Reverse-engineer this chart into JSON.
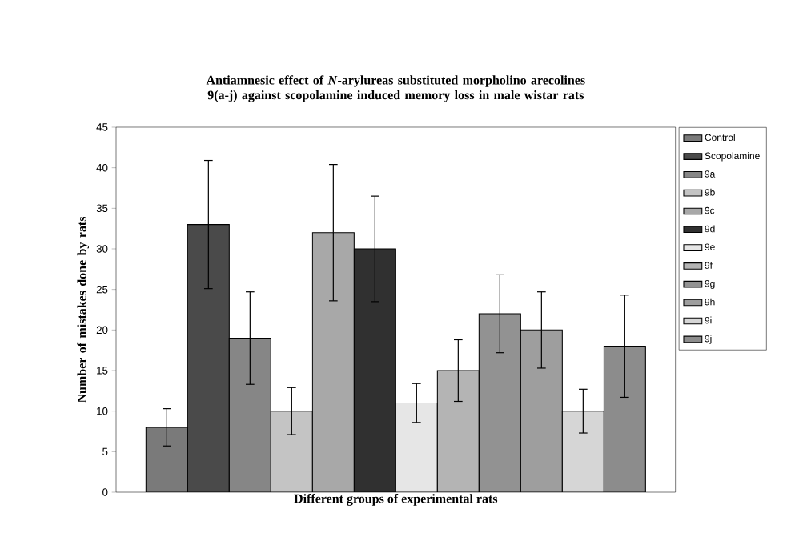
{
  "chart_data": {
    "type": "bar",
    "title": "Antiamnesic effect of *N*-arylureas substituted morpholino arecolines 9(a-j) against scopolamine induced memory loss in male wistar rats",
    "xlabel": "Different groups of experimental rats",
    "ylabel": "Number of mistakes done by rats",
    "categories": [
      null
    ],
    "series": [
      {
        "name": "Control",
        "color": "#7a7a7a",
        "values": [
          8
        ],
        "errors": [
          2.3
        ]
      },
      {
        "name": "Scopolamine",
        "color": "#4a4a4a",
        "values": [
          33
        ],
        "errors": [
          7.9
        ]
      },
      {
        "name": "9a",
        "color": "#868686",
        "values": [
          19
        ],
        "errors": [
          5.7
        ]
      },
      {
        "name": "9b",
        "color": "#c4c4c4",
        "values": [
          10
        ],
        "errors": [
          2.9
        ]
      },
      {
        "name": "9c",
        "color": "#a8a8a8",
        "values": [
          32
        ],
        "errors": [
          8.4
        ]
      },
      {
        "name": "9d",
        "color": "#303030",
        "values": [
          30
        ],
        "errors": [
          6.5
        ]
      },
      {
        "name": "9e",
        "color": "#e6e6e6",
        "values": [
          11
        ],
        "errors": [
          2.4
        ]
      },
      {
        "name": "9f",
        "color": "#b4b4b4",
        "values": [
          15
        ],
        "errors": [
          3.8
        ]
      },
      {
        "name": "9g",
        "color": "#929292",
        "values": [
          22
        ],
        "errors": [
          4.8
        ]
      },
      {
        "name": "9h",
        "color": "#9e9e9e",
        "values": [
          20
        ],
        "errors": [
          4.7
        ]
      },
      {
        "name": "9i",
        "color": "#d6d6d6",
        "values": [
          10
        ],
        "errors": [
          2.7
        ]
      },
      {
        "name": "9j",
        "color": "#8c8c8c",
        "values": [
          18
        ],
        "errors": [
          6.3
        ]
      }
    ],
    "ylim": [
      0,
      45
    ],
    "yticks": [
      0,
      5,
      10,
      15,
      20,
      25,
      30,
      35,
      40,
      45
    ],
    "legend": "right"
  }
}
